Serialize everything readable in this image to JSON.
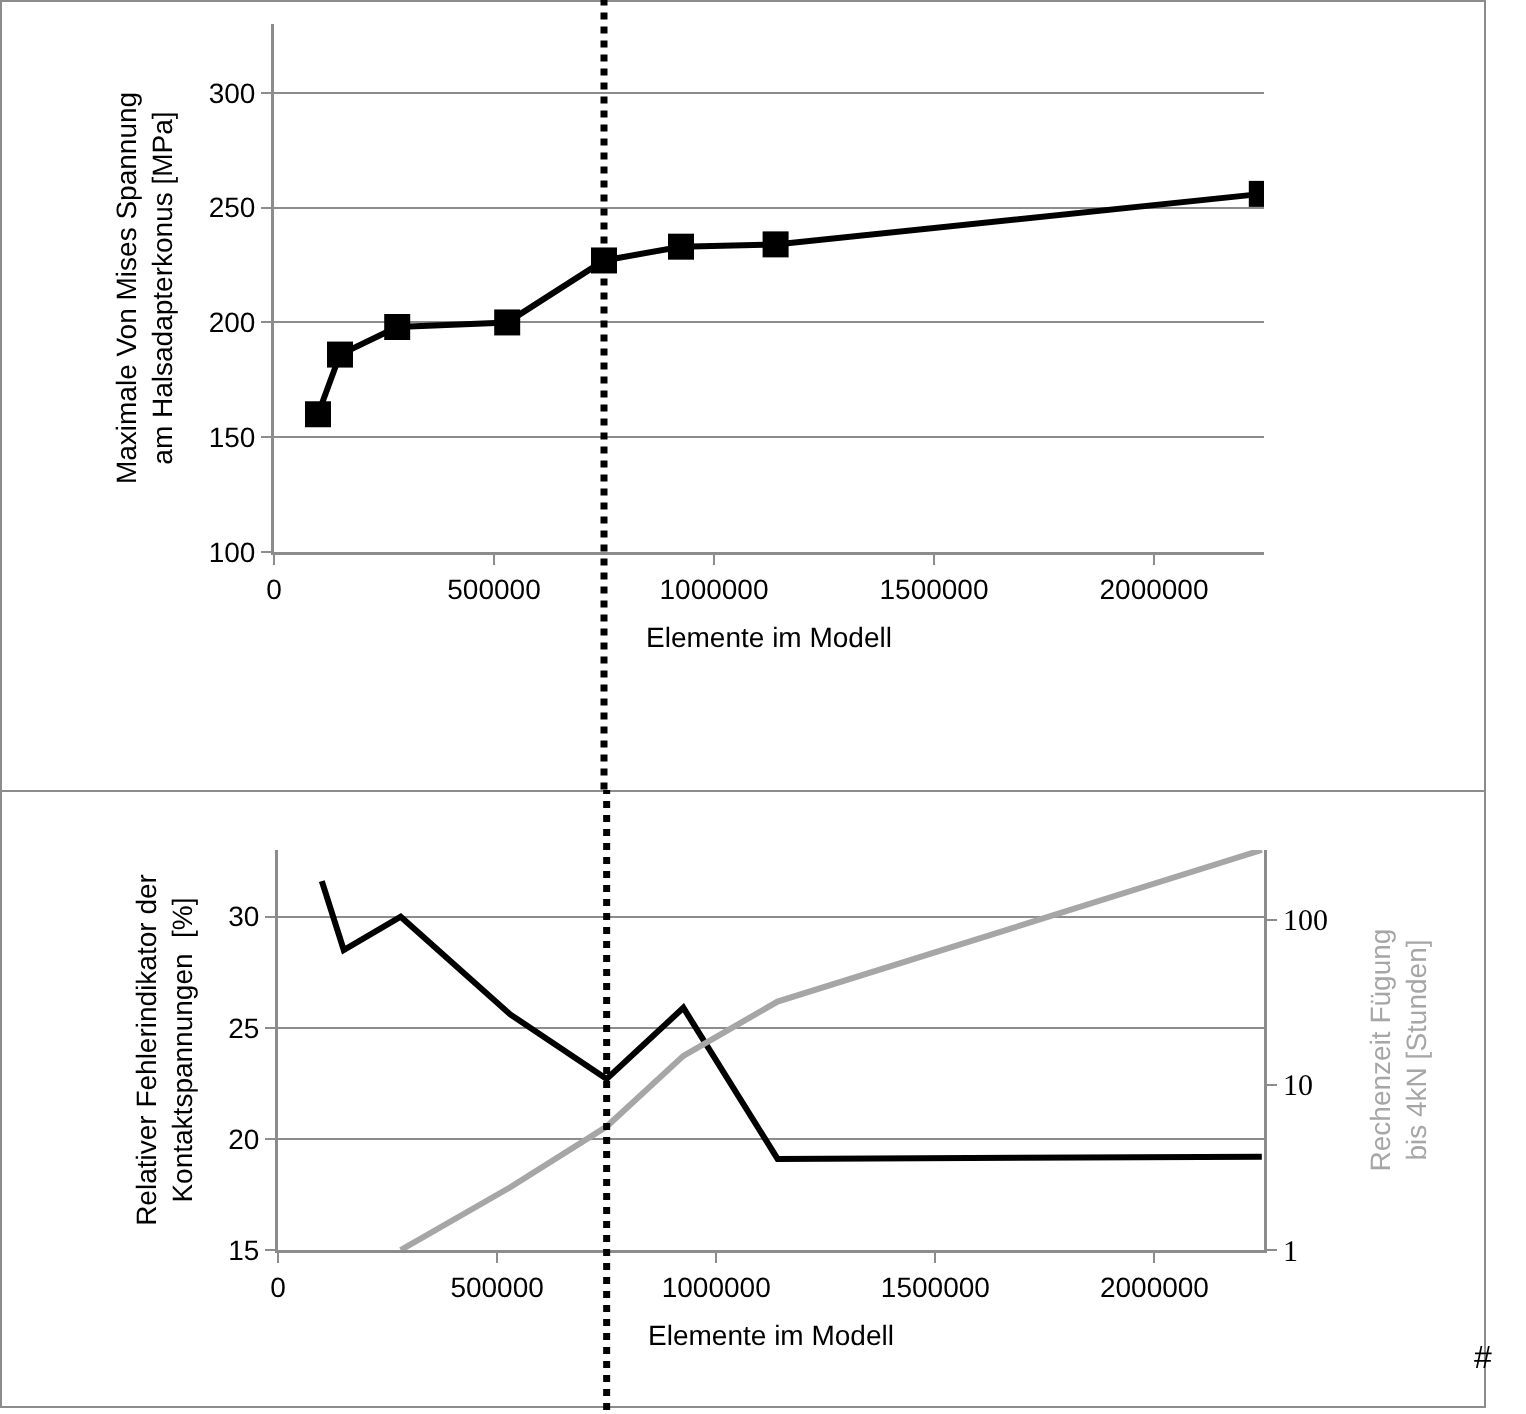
{
  "chart_data": [
    {
      "type": "line",
      "xlabel": "Elemente im Modell",
      "ylabel": "Maximale Von Mises Spannung\nam Halsadapterkonus [MPa]",
      "x": [
        100000,
        150000,
        280000,
        530000,
        750000,
        925000,
        1140000,
        2245000
      ],
      "series": [
        {
          "color": "#000000",
          "values": [
            160,
            186,
            198,
            200,
            227,
            233,
            234,
            256
          ]
        }
      ],
      "xlim": [
        0,
        2250000
      ],
      "xticks": [
        0,
        500000,
        1000000,
        1500000,
        2000000
      ],
      "ylim": [
        100,
        330
      ],
      "yticks": [
        100,
        150,
        200,
        250,
        300
      ],
      "grid": "y",
      "marker": "square",
      "line_style": "solid",
      "ref_lines": [
        {
          "axis": "x",
          "value": 750000,
          "color": "#000000",
          "line_style": "dotted"
        }
      ]
    },
    {
      "type": "line",
      "xlabel": "Elemente im Modell",
      "ylabel": "Relativer Fehlerindikator der\nKontaktspannungen  [%]",
      "y2label": "Rechenzeit Fügung\nbis 4kN [Stunden]",
      "x": [
        100000,
        150000,
        280000,
        530000,
        750000,
        925000,
        1140000,
        2245000
      ],
      "series": [
        {
          "color": "#000000",
          "values": [
            31.6,
            28.5,
            30.0,
            25.6,
            22.7,
            25.9,
            19.1,
            19.2
          ]
        },
        {
          "color": "#a6a6a6",
          "axis": "y2",
          "values": [
            null,
            null,
            1,
            2.4,
            5.6,
            15,
            32,
            265
          ]
        }
      ],
      "xlim": [
        0,
        2250000
      ],
      "xticks": [
        0,
        500000,
        1000000,
        1500000,
        2000000
      ],
      "ylim": [
        15,
        33
      ],
      "yticks": [
        15,
        20,
        25,
        30
      ],
      "y2lim": [
        1,
        265
      ],
      "y2ticks": [
        1,
        10,
        100
      ],
      "log": "y2",
      "grid": "y",
      "line_style": "solid",
      "ref_lines": [
        {
          "axis": "x",
          "value": 750000,
          "color": "#000000",
          "line_style": "dotted"
        }
      ],
      "annotations": [
        "#"
      ]
    }
  ]
}
